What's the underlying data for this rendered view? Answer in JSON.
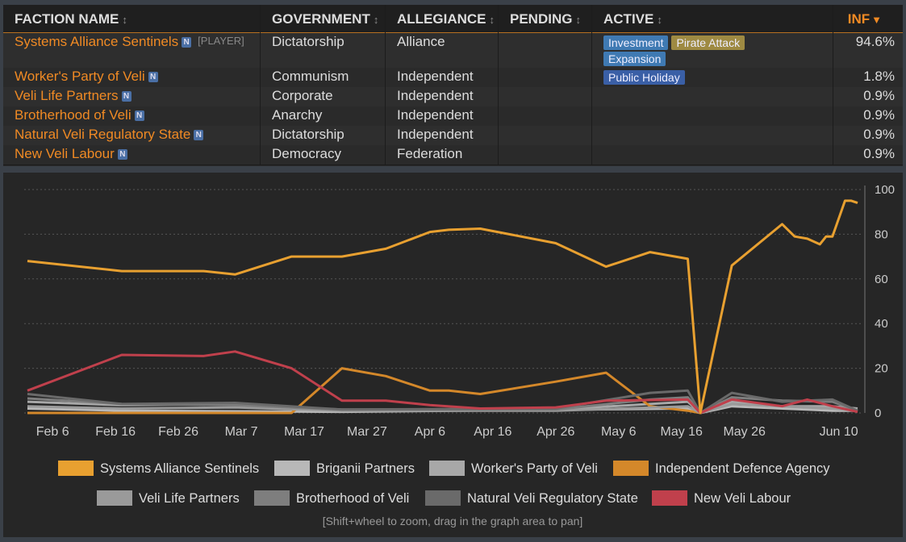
{
  "table": {
    "headers": [
      "FACTION NAME",
      "GOVERNMENT",
      "ALLEGIANCE",
      "PENDING",
      "ACTIVE",
      "INF"
    ],
    "rows": [
      {
        "name": "Systems Alliance Sentinels",
        "badge": "N",
        "tag": "[PLAYER]",
        "government": "Dictatorship",
        "allegiance": "Alliance",
        "active": [
          "Investment",
          "Pirate Attack",
          "Expansion"
        ],
        "inf": "94.6%"
      },
      {
        "name": "Worker's Party of Veli",
        "badge": "N",
        "government": "Communism",
        "allegiance": "Independent",
        "active": [
          "Public Holiday"
        ],
        "inf": "1.8%"
      },
      {
        "name": "Veli Life Partners",
        "badge": "N",
        "government": "Corporate",
        "allegiance": "Independent",
        "inf": "0.9%"
      },
      {
        "name": "Brotherhood of Veli",
        "badge": "N",
        "government": "Anarchy",
        "allegiance": "Independent",
        "inf": "0.9%"
      },
      {
        "name": "Natural Veli Regulatory State",
        "badge": "N",
        "government": "Dictatorship",
        "allegiance": "Independent",
        "inf": "0.9%"
      },
      {
        "name": "New Veli Labour",
        "badge": "N",
        "government": "Democracy",
        "allegiance": "Federation",
        "inf": "0.9%"
      }
    ]
  },
  "chart_data": {
    "type": "line",
    "xlim": [
      "Feb 2",
      "Jun 13"
    ],
    "xticks": [
      "Feb 6",
      "Feb 16",
      "Feb 26",
      "Mar 7",
      "Mar 17",
      "Mar 27",
      "Apr 6",
      "Apr 16",
      "Apr 26",
      "May 6",
      "May 16",
      "May 26",
      "Jun 10"
    ],
    "ylim": [
      0,
      100
    ],
    "yticks": [
      0,
      20,
      40,
      60,
      80,
      100
    ],
    "grid": true,
    "series": [
      {
        "name": "Systems Alliance Sentinels",
        "color": "#e8a030",
        "x": [
          "Feb 2",
          "Feb 17",
          "Mar 1",
          "Mar 6",
          "Mar 15",
          "Mar 23",
          "Mar 30",
          "Apr 6",
          "Apr 9",
          "Apr 14",
          "Apr 26",
          "May 4",
          "May 11",
          "May 17",
          "May 19",
          "May 24",
          "Jun 1",
          "Jun 3",
          "Jun 5",
          "Jun 7",
          "Jun 8",
          "Jun 9",
          "Jun 11",
          "Jun 12",
          "Jun 13"
        ],
        "values": [
          68,
          63.5,
          63.5,
          62,
          70,
          70,
          73.5,
          81,
          82,
          82.5,
          76,
          65.5,
          72,
          69,
          0,
          66,
          84.5,
          79,
          78,
          75.5,
          79,
          79,
          95,
          95,
          94
        ]
      },
      {
        "name": "Briganii Partners",
        "color": "#b8b8b8",
        "x": [
          "Feb 2",
          "Feb 17",
          "Mar 23",
          "May 17",
          "May 19",
          "May 24",
          "Jun 9",
          "Jun 13"
        ],
        "values": [
          2,
          1,
          0.5,
          2,
          0,
          3,
          1,
          1
        ]
      },
      {
        "name": "Worker's Party of Veli",
        "color": "#a8a8a8",
        "x": [
          "Feb 2",
          "Feb 17",
          "Mar 6",
          "Mar 23",
          "Apr 26",
          "May 11",
          "May 17",
          "May 19",
          "May 24",
          "Jun 1",
          "Jun 9",
          "Jun 13"
        ],
        "values": [
          5,
          3.5,
          4,
          1,
          1.5,
          4,
          5,
          0,
          5,
          3,
          3,
          2
        ]
      },
      {
        "name": "Independent Defence Agency",
        "color": "#d4882a",
        "x": [
          "Feb 2",
          "Mar 15",
          "Mar 23",
          "Mar 30",
          "Apr 6",
          "Apr 9",
          "Apr 14",
          "Apr 26",
          "May 4",
          "May 11",
          "May 17",
          "May 19"
        ],
        "values": [
          0,
          0,
          20,
          16.5,
          10,
          10,
          8.5,
          14,
          18,
          3,
          1,
          0
        ]
      },
      {
        "name": "Veli Life Partners",
        "color": "#9a9a9a",
        "x": [
          "Feb 2",
          "Feb 17",
          "Mar 6",
          "Mar 23",
          "Apr 26",
          "May 17",
          "May 19",
          "May 24",
          "Jun 9",
          "Jun 13"
        ],
        "values": [
          3,
          2,
          2.5,
          1,
          1,
          3,
          0,
          4,
          2,
          1
        ]
      },
      {
        "name": "Brotherhood of Veli",
        "color": "#7e7e7e",
        "x": [
          "Feb 2",
          "Feb 17",
          "Mar 6",
          "Mar 23",
          "Apr 26",
          "May 11",
          "May 17",
          "May 19",
          "May 24",
          "Jun 1",
          "Jun 9",
          "Jun 13"
        ],
        "values": [
          6.5,
          4,
          3.5,
          1.5,
          1.5,
          6,
          7,
          0,
          7,
          5.5,
          5,
          1
        ]
      },
      {
        "name": "Natural Veli Regulatory State",
        "color": "#6a6a6a",
        "x": [
          "Feb 2",
          "Feb 17",
          "Mar 6",
          "Mar 23",
          "Apr 26",
          "May 11",
          "May 17",
          "May 19",
          "May 24",
          "Jun 1",
          "Jun 9",
          "Jun 13"
        ],
        "values": [
          8.5,
          4,
          4.5,
          1.5,
          2,
          9,
          10,
          0,
          9,
          5,
          6,
          1
        ]
      },
      {
        "name": "New Veli Labour",
        "color": "#c0404c",
        "x": [
          "Feb 2",
          "Feb 17",
          "Mar 1",
          "Mar 6",
          "Mar 15",
          "Mar 23",
          "Mar 30",
          "Apr 6",
          "Apr 14",
          "Apr 26",
          "May 4",
          "May 17",
          "May 19",
          "May 24",
          "Jun 1",
          "Jun 5",
          "Jun 9",
          "Jun 13"
        ],
        "values": [
          10,
          26,
          25.5,
          27.5,
          20,
          5.5,
          5.5,
          3.5,
          2,
          2.5,
          5.5,
          6,
          0,
          6,
          3,
          6,
          3,
          0.5
        ]
      }
    ],
    "hint": "[Shift+wheel to zoom, drag in the graph area to pan]"
  }
}
